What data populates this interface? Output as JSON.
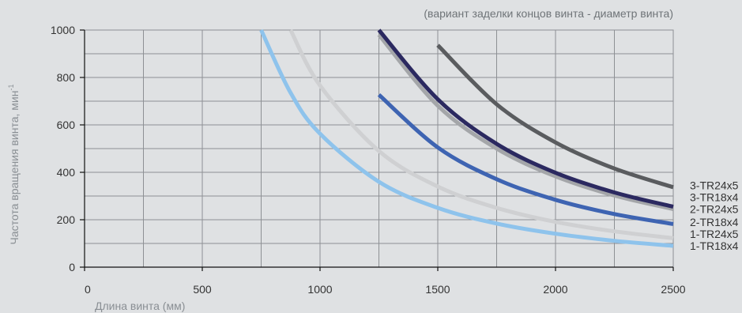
{
  "chart_data": {
    "type": "line",
    "title": "",
    "annotation": "(вариант заделки концов винта - диаметр винта)",
    "xlabel": "Длина винта (мм)",
    "ylabel": "Частота вращения винта, мин",
    "ylabel_superscript": "-1",
    "xlim": [
      0,
      2500
    ],
    "ylim": [
      0,
      1000
    ],
    "xticks": [
      0,
      500,
      1000,
      1500,
      2000,
      2500
    ],
    "yticks": [
      0,
      200,
      400,
      600,
      800,
      1000
    ],
    "grid": true,
    "x": [
      750,
      875,
      1000,
      1250,
      1500,
      1750,
      2000,
      2250,
      2500
    ],
    "series": [
      {
        "name": "1-TR18x4",
        "color": "#8ec3ec",
        "values": [
          1000,
          735,
          563,
          360,
          250,
          184,
          141,
          111,
          90
        ]
      },
      {
        "name": "1-TR24x5",
        "color": "#cfd0d2",
        "values": [
          null,
          1000,
          766,
          490,
          340,
          250,
          191,
          151,
          122
        ]
      },
      {
        "name": "2-TR18x4",
        "color": "#3e64b2",
        "values": [
          null,
          null,
          null,
          727,
          505,
          371,
          284,
          224,
          182
        ]
      },
      {
        "name": "2-TR24x5",
        "color": "#a4a6a9",
        "values": [
          null,
          null,
          null,
          980,
          681,
          500,
          383,
          302,
          245
        ]
      },
      {
        "name": "3-TR18x4",
        "color": "#2b2960",
        "values": [
          null,
          null,
          null,
          1000,
          708,
          520,
          398,
          315,
          255
        ]
      },
      {
        "name": "3-TR24x5",
        "color": "#5a5c5f",
        "values": [
          null,
          null,
          null,
          null,
          936,
          687,
          526,
          416,
          337
        ]
      }
    ]
  }
}
